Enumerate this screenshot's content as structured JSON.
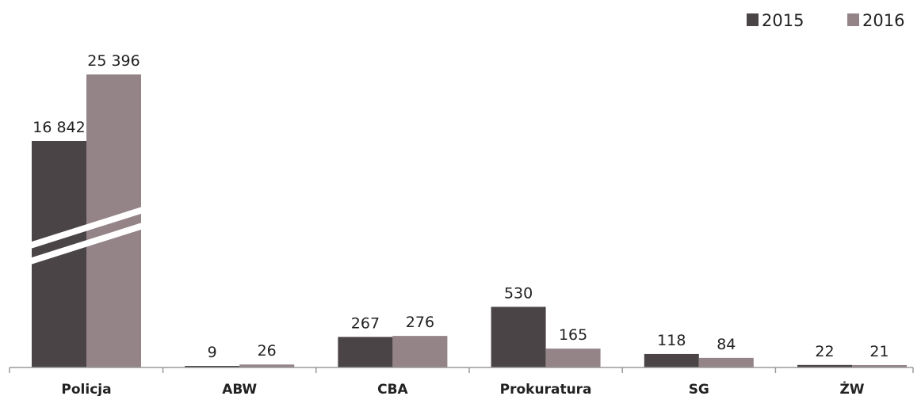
{
  "chart_data": {
    "type": "bar",
    "categories": [
      "Policja",
      "ABW",
      "CBA",
      "Prokuratura",
      "SG",
      "ŻW"
    ],
    "series": [
      {
        "name": "2015",
        "values": [
          16842,
          9,
          267,
          530,
          118,
          22
        ],
        "labels": [
          "16 842",
          "9",
          "267",
          "530",
          "118",
          "22"
        ]
      },
      {
        "name": "2016",
        "values": [
          25396,
          26,
          276,
          165,
          84,
          21
        ],
        "labels": [
          "25 396",
          "26",
          "276",
          "165",
          "84",
          "21"
        ]
      }
    ],
    "title": "",
    "xlabel": "",
    "ylabel": "",
    "axis_break": true,
    "grid": false,
    "legend": "top-right",
    "colors": {
      "2015": "#4a4446",
      "2016": "#958487"
    }
  }
}
